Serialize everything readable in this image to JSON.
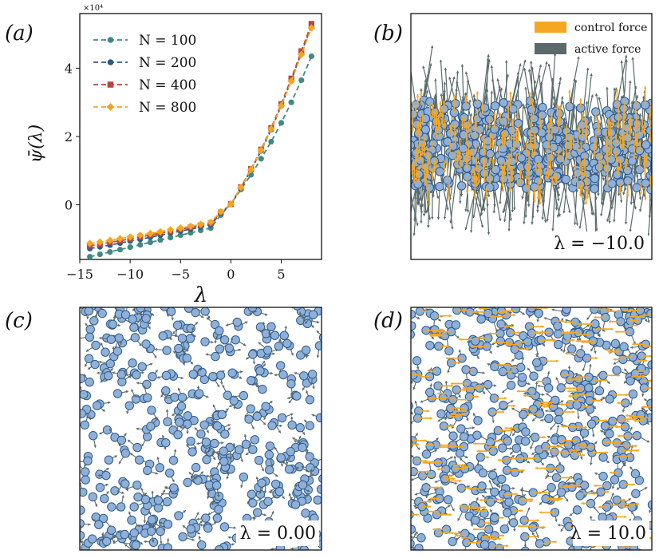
{
  "chart_data": [
    {
      "panel": "a",
      "type": "line",
      "panel_label": "(a)",
      "xlabel": "λ",
      "ylabel": "ψ̄(λ)",
      "y_scale_label": "×10⁴",
      "xlim": [
        -15,
        9
      ],
      "ylim": [
        -1.6,
        5.6
      ],
      "xticks": [
        -15,
        -10,
        -5,
        0,
        5
      ],
      "yticks": [
        0,
        2,
        4
      ],
      "x": [
        -14,
        -13,
        -12,
        -11,
        -10,
        -9,
        -8,
        -7,
        -6,
        -5,
        -4,
        -3,
        -2,
        -1,
        0,
        1,
        2,
        3,
        4,
        5,
        6,
        7,
        8
      ],
      "series": [
        {
          "name": "N = 100",
          "color": "#3f8a83",
          "marker": "circle",
          "values": [
            -1.52,
            -1.45,
            -1.38,
            -1.31,
            -1.24,
            -1.17,
            -1.1,
            -1.03,
            -0.96,
            -0.89,
            -0.82,
            -0.75,
            -0.68,
            -0.3,
            0.02,
            0.45,
            0.88,
            1.35,
            1.85,
            2.4,
            3.0,
            3.65,
            4.35
          ]
        },
        {
          "name": "N = 200",
          "color": "#2b5b8c",
          "marker": "circle",
          "values": [
            -1.28,
            -1.23,
            -1.18,
            -1.12,
            -1.06,
            -1.01,
            -0.95,
            -0.89,
            -0.83,
            -0.77,
            -0.71,
            -0.65,
            -0.58,
            -0.25,
            0.02,
            0.5,
            1.02,
            1.58,
            2.2,
            2.9,
            3.65,
            4.45,
            5.25
          ]
        },
        {
          "name": "N = 400",
          "color": "#b5483a",
          "marker": "square",
          "values": [
            -1.2,
            -1.15,
            -1.1,
            -1.05,
            -1.0,
            -0.94,
            -0.89,
            -0.83,
            -0.78,
            -0.72,
            -0.66,
            -0.6,
            -0.54,
            -0.22,
            0.02,
            0.52,
            1.05,
            1.62,
            2.25,
            2.95,
            3.7,
            4.5,
            5.3
          ]
        },
        {
          "name": "N = 800",
          "color": "#f5a623",
          "marker": "diamond",
          "values": [
            -1.13,
            -1.09,
            -1.04,
            -0.99,
            -0.94,
            -0.89,
            -0.84,
            -0.79,
            -0.73,
            -0.68,
            -0.63,
            -0.57,
            -0.51,
            -0.2,
            0.02,
            0.51,
            1.03,
            1.6,
            2.22,
            2.9,
            3.62,
            4.4,
            5.18
          ]
        }
      ]
    },
    {
      "panel": "b",
      "type": "scatter",
      "panel_label": "(b)",
      "annotation": "λ = −10.0",
      "legend": [
        {
          "label": "control force",
          "color": "#f5a623"
        },
        {
          "label": "active force",
          "color": "#5a6a6b"
        }
      ],
      "particle_color": "#8fb0d8",
      "particle_edge": "#2f5a8a"
    },
    {
      "panel": "c",
      "type": "scatter",
      "panel_label": "(c)",
      "annotation": "λ = 0.00"
    },
    {
      "panel": "d",
      "type": "scatter",
      "panel_label": "(d)",
      "annotation": "λ = 10.0"
    }
  ]
}
